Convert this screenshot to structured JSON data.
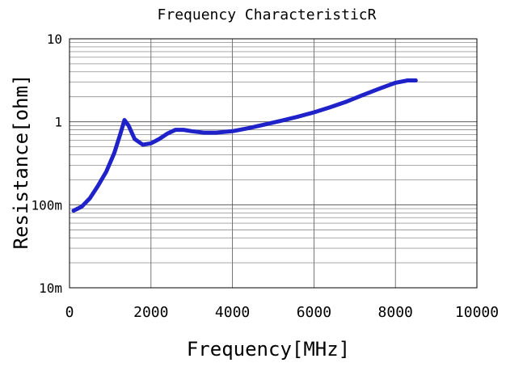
{
  "chart_data": {
    "type": "line",
    "title": "Frequency  CharacteristicR",
    "xlabel": "Frequency[MHz]",
    "ylabel": "Resistance[ohm]",
    "xlim": [
      0,
      10000
    ],
    "ylim": [
      0.01,
      10
    ],
    "yscale": "log",
    "grid": true,
    "legend": "none",
    "x_ticks": [
      0,
      2000,
      4000,
      6000,
      8000,
      10000
    ],
    "x_tick_labels": [
      "0",
      "2000",
      "4000",
      "6000",
      "8000",
      "10000"
    ],
    "y_ticks": [
      0.01,
      0.1,
      1,
      10
    ],
    "y_tick_labels": [
      "10m",
      "100m",
      "1",
      "10"
    ],
    "series": [
      {
        "color": "#1f22c8",
        "x": [
          100,
          300,
          500,
          700,
          900,
          1100,
          1250,
          1350,
          1450,
          1600,
          1800,
          2000,
          2200,
          2400,
          2600,
          2800,
          3000,
          3300,
          3600,
          4000,
          4400,
          4800,
          5200,
          5600,
          6000,
          6400,
          6800,
          7200,
          7600,
          8000,
          8300,
          8500
        ],
        "y": [
          0.085,
          0.095,
          0.12,
          0.17,
          0.25,
          0.42,
          0.72,
          1.05,
          0.9,
          0.62,
          0.53,
          0.55,
          0.62,
          0.72,
          0.8,
          0.8,
          0.77,
          0.74,
          0.74,
          0.77,
          0.84,
          0.93,
          1.03,
          1.15,
          1.3,
          1.5,
          1.75,
          2.1,
          2.5,
          2.95,
          3.15,
          3.15
        ]
      }
    ]
  }
}
